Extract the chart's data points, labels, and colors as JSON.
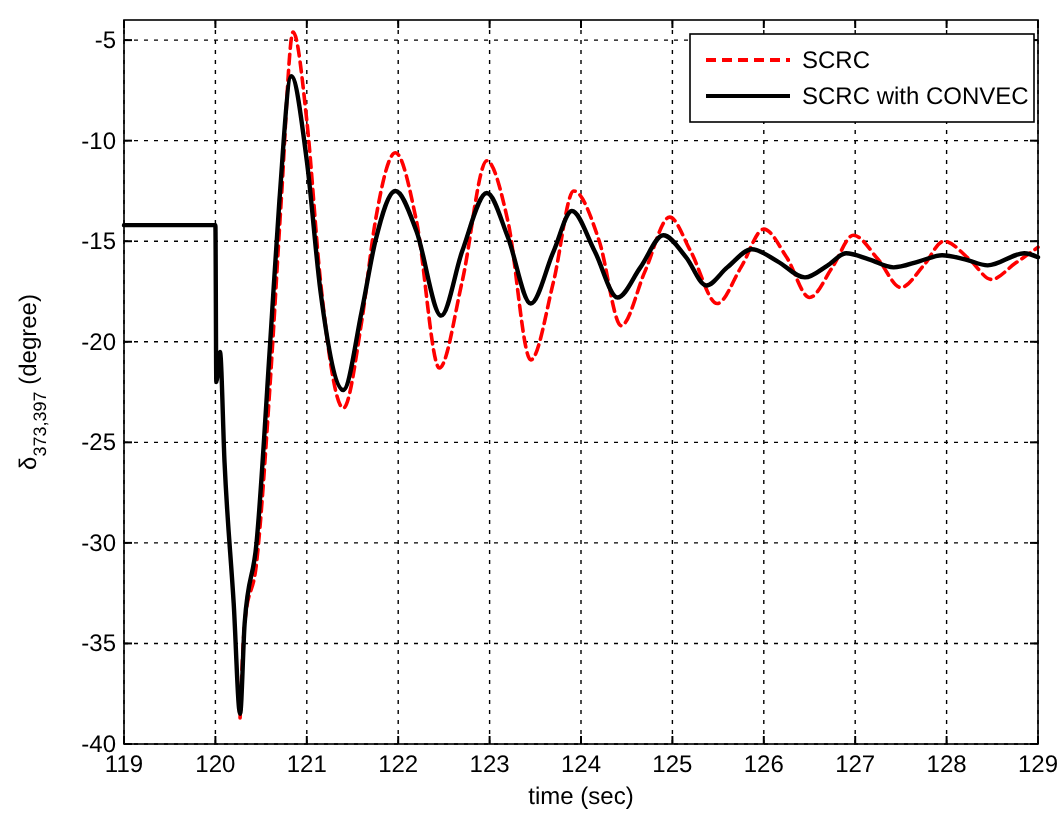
{
  "chart_data": {
    "type": "line",
    "xlabel": "time (sec)",
    "ylabel": "δ$_{373,397}$ (degree)",
    "xlim": [
      119,
      129
    ],
    "ylim": [
      -40,
      -4
    ],
    "xticks": [
      119,
      120,
      121,
      122,
      123,
      124,
      125,
      126,
      127,
      128,
      129
    ],
    "yticks": [
      -40,
      -35,
      -30,
      -25,
      -20,
      -15,
      -10,
      -5
    ],
    "grid": true,
    "legend": "top right",
    "series": [
      {
        "name": "SCRC",
        "color": "#ff0000",
        "line_style": "dashed",
        "x": [
          120.27,
          120.32,
          120.45,
          120.6,
          120.72,
          120.85,
          121.0,
          121.15,
          121.4,
          121.6,
          121.75,
          121.97,
          122.2,
          122.45,
          122.7,
          122.97,
          123.2,
          123.45,
          123.7,
          123.92,
          124.2,
          124.44,
          124.7,
          124.97,
          125.2,
          125.49,
          125.75,
          126.0,
          126.25,
          126.5,
          126.75,
          126.98,
          127.25,
          127.5,
          127.75,
          127.97,
          128.25,
          128.49,
          128.75,
          129
        ],
        "values": [
          -38.7,
          -34,
          -31,
          -22,
          -13,
          -4.6,
          -9,
          -17,
          -23.3,
          -19,
          -14,
          -10.6,
          -14,
          -21.3,
          -17,
          -11,
          -14,
          -20.9,
          -17,
          -12.5,
          -15,
          -19.2,
          -16.5,
          -13.8,
          -15.5,
          -18.1,
          -16.3,
          -14.4,
          -15.8,
          -17.8,
          -16.3,
          -14.7,
          -15.9,
          -17.3,
          -16.2,
          -15,
          -15.9,
          -16.9,
          -16.1,
          -15.3
        ]
      },
      {
        "name": "SCRC with CONVEC",
        "color": "#000000",
        "line_style": "solid",
        "x": [
          119,
          120,
          120.01,
          120.05,
          120.1,
          120.2,
          120.27,
          120.32,
          120.45,
          120.6,
          120.7,
          120.83,
          121.0,
          121.15,
          121.4,
          121.6,
          121.75,
          121.97,
          122.2,
          122.47,
          122.7,
          122.97,
          123.2,
          123.45,
          123.7,
          123.9,
          124.15,
          124.4,
          124.65,
          124.9,
          125.15,
          125.37,
          125.6,
          125.87,
          126.15,
          126.45,
          126.7,
          126.9,
          127.15,
          127.42,
          127.7,
          127.95,
          128.2,
          128.45,
          128.85,
          129
        ],
        "values": [
          -14.2,
          -14.2,
          -22,
          -20.5,
          -26,
          -33,
          -38.5,
          -34,
          -30,
          -20,
          -13,
          -6.8,
          -11,
          -17.5,
          -22.4,
          -18.5,
          -15,
          -12.5,
          -14.5,
          -18.7,
          -15.5,
          -12.6,
          -14.8,
          -18.1,
          -15.5,
          -13.5,
          -15.5,
          -17.8,
          -16.3,
          -14.7,
          -15.8,
          -17.2,
          -16.3,
          -15.4,
          -16.0,
          -16.8,
          -16.2,
          -15.6,
          -15.9,
          -16.3,
          -16.0,
          -15.7,
          -15.9,
          -16.2,
          -15.6,
          -15.8
        ]
      }
    ]
  }
}
